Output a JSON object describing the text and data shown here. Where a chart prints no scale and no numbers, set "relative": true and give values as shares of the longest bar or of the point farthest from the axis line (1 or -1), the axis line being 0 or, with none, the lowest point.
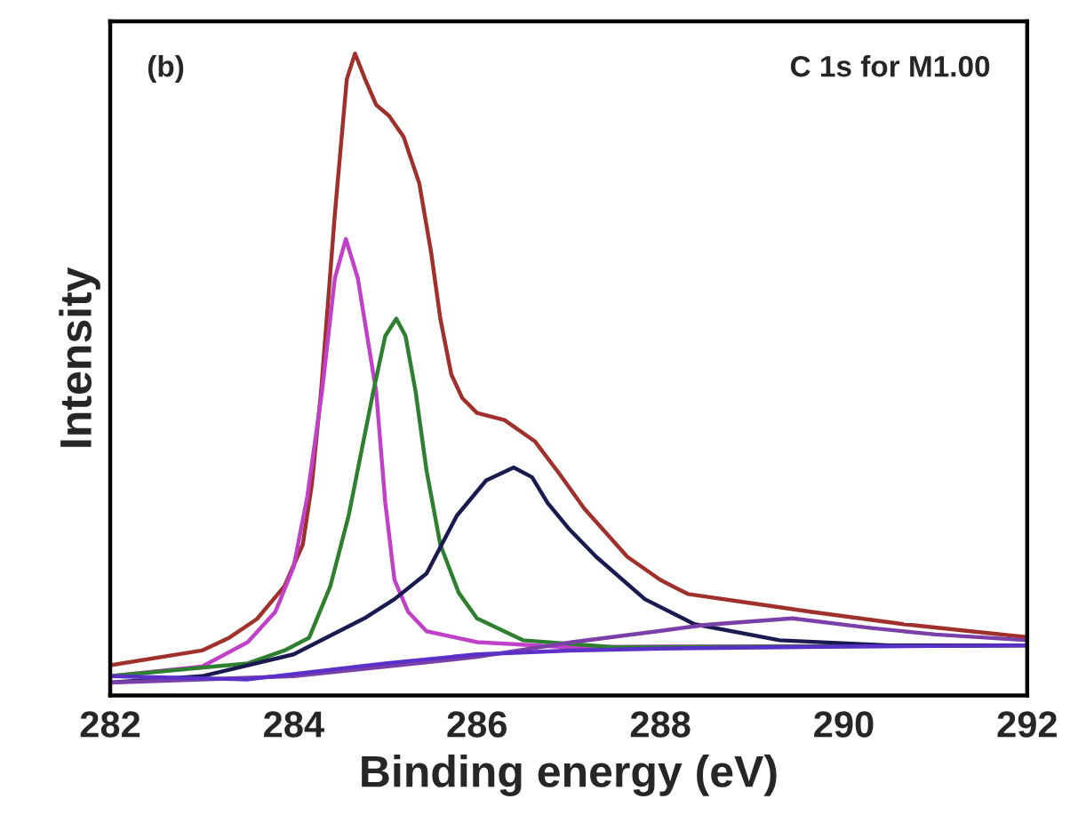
{
  "chart_data": {
    "type": "line",
    "relative": true,
    "xlabel": "Binding energy (eV)",
    "ylabel": "Intensity",
    "annotations": [
      "(b)",
      "C 1s for M1.00"
    ],
    "xlim": [
      282,
      292
    ],
    "xticks": [
      282,
      284,
      286,
      288,
      290,
      292
    ],
    "grid": false,
    "marker": "none",
    "line_style": "solid",
    "series": [
      {
        "color": "#a0302c",
        "x": [
          282,
          283,
          283.3,
          283.6,
          283.9,
          284.1,
          284.2,
          284.3,
          284.45,
          284.58,
          284.67,
          284.78,
          284.9,
          285.04,
          285.2,
          285.37,
          285.5,
          285.6,
          285.72,
          285.84,
          286.0,
          286.3,
          286.63,
          286.9,
          287.17,
          287.64,
          288.0,
          288.3,
          288.98,
          289.65,
          290.65,
          291.98
        ],
        "values": [
          0.047,
          0.07,
          0.09,
          0.119,
          0.17,
          0.235,
          0.33,
          0.474,
          0.75,
          0.96,
          1.0,
          0.96,
          0.92,
          0.903,
          0.87,
          0.798,
          0.69,
          0.587,
          0.5,
          0.463,
          0.44,
          0.429,
          0.396,
          0.345,
          0.291,
          0.216,
          0.18,
          0.158,
          0.144,
          0.13,
          0.111,
          0.091
        ]
      },
      {
        "color": "#c040c8",
        "x": [
          282,
          283,
          283.5,
          283.8,
          284.0,
          284.15,
          284.31,
          284.45,
          284.57,
          284.7,
          284.9,
          285.0,
          285.1,
          285.25,
          285.45,
          286.0,
          287.0,
          288.0,
          292.0
        ],
        "values": [
          0.03,
          0.045,
          0.083,
          0.13,
          0.2,
          0.31,
          0.474,
          0.65,
          0.711,
          0.65,
          0.474,
          0.3,
          0.18,
          0.13,
          0.1,
          0.083,
          0.075,
          0.076,
          0.078
        ]
      },
      {
        "color": "#2e8030",
        "x": [
          282,
          283.5,
          283.9,
          284.17,
          284.4,
          284.6,
          284.87,
          285.0,
          285.12,
          285.22,
          285.33,
          285.45,
          285.6,
          285.8,
          286.0,
          286.5,
          287.5,
          292.0
        ],
        "values": [
          0.03,
          0.05,
          0.07,
          0.09,
          0.17,
          0.28,
          0.474,
          0.56,
          0.587,
          0.56,
          0.474,
          0.35,
          0.235,
          0.16,
          0.12,
          0.086,
          0.075,
          0.078
        ]
      },
      {
        "color": "#1a1a50",
        "x": [
          282,
          283,
          284,
          284.77,
          285.1,
          285.45,
          285.78,
          286.1,
          286.4,
          286.6,
          286.77,
          287.0,
          287.3,
          287.83,
          288.37,
          289.3,
          290.5,
          292.0
        ],
        "values": [
          0.02,
          0.03,
          0.064,
          0.12,
          0.15,
          0.19,
          0.28,
          0.335,
          0.355,
          0.34,
          0.3,
          0.26,
          0.216,
          0.15,
          0.111,
          0.086,
          0.078,
          0.078
        ]
      },
      {
        "color": "#7b3fa8",
        "x": [
          282,
          284,
          285,
          286,
          287.04,
          287.97,
          288.5,
          289.44,
          290.3,
          291,
          292
        ],
        "values": [
          0.02,
          0.03,
          0.045,
          0.06,
          0.083,
          0.1,
          0.11,
          0.12,
          0.105,
          0.095,
          0.086
        ]
      },
      {
        "color": "#5a30c8",
        "x": [
          282,
          283.5,
          285,
          286,
          287,
          288,
          290,
          292
        ],
        "values": [
          0.03,
          0.025,
          0.05,
          0.064,
          0.07,
          0.073,
          0.076,
          0.078
        ]
      }
    ]
  }
}
